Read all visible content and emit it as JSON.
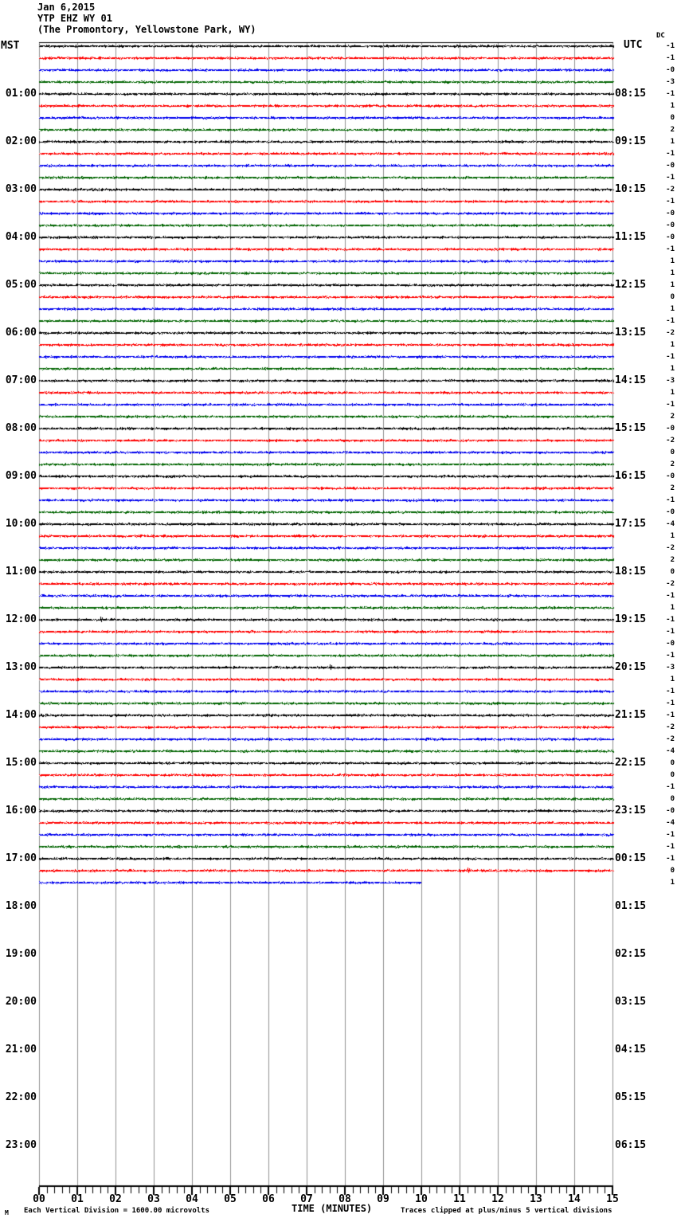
{
  "header": {
    "date": "Jan 6,2015",
    "station": "YTP EHZ WY 01",
    "location": "(The Promontory, Yellowstone Park, WY)"
  },
  "left_axis": {
    "unit": "MST",
    "hour_labels": [
      "01:00",
      "02:00",
      "03:00",
      "04:00",
      "05:00",
      "06:00",
      "07:00",
      "08:00",
      "09:00",
      "10:00",
      "11:00",
      "12:00",
      "13:00",
      "14:00",
      "15:00",
      "16:00",
      "17:00",
      "18:00",
      "19:00",
      "20:00",
      "21:00",
      "22:00",
      "23:00"
    ]
  },
  "right_axis": {
    "unit": "UTC",
    "hour_labels": [
      "08:15",
      "09:15",
      "10:15",
      "11:15",
      "12:15",
      "13:15",
      "14:15",
      "15:15",
      "16:15",
      "17:15",
      "18:15",
      "19:15",
      "20:15",
      "21:15",
      "22:15",
      "23:15",
      "00:15",
      "01:15",
      "02:15",
      "03:15",
      "04:15",
      "05:15",
      "06:15"
    ]
  },
  "dc_column": {
    "label": "DC"
  },
  "x_axis": {
    "title": "TIME (MINUTES)",
    "tick_labels": [
      "00",
      "01",
      "02",
      "03",
      "04",
      "05",
      "06",
      "07",
      "08",
      "09",
      "10",
      "11",
      "12",
      "13",
      "14",
      "15"
    ]
  },
  "footer": {
    "marker": "M",
    "left_note": "Each Vertical Division = 1600.00 microvolts",
    "right_note": "Traces clipped at plus/minus 5 vertical divisions"
  },
  "chart_data": {
    "type": "line",
    "title": "YTP EHZ WY 01 helicorder, Jan 6 2015 (The Promontory, Yellowstone Park, WY)",
    "xlabel": "TIME (MINUTES)",
    "x_range": [
      0,
      15
    ],
    "x_major_tick": 1,
    "x_minor_tick": 0.2,
    "traces_per_hour": 4,
    "minutes_per_trace": 15,
    "num_traces": 71,
    "first_trace_start_mst": "00:00",
    "last_trace_start_mst": "17:30",
    "last_partial_trace": {
      "index": 70,
      "ends_at_minute": 10.0
    },
    "trace_color_cycle": [
      "#000000",
      "#ff0000",
      "#0000ee",
      "#006400"
    ],
    "grid_color": "#909090",
    "baseline": "all traces flat background noise at 0 amplitude",
    "dc_offsets": [
      "-1",
      "-1",
      "-0",
      "-3",
      "-1",
      "1",
      "0",
      "2",
      "1",
      "-1",
      "-0",
      "-1",
      "-2",
      "-1",
      "-0",
      "-0",
      "-0",
      "-1",
      "1",
      "1",
      "1",
      "0",
      "1",
      "-1",
      "-2",
      "1",
      "-1",
      "1",
      "-3",
      "1",
      "-1",
      "2",
      "-0",
      "-2",
      "0",
      "2",
      "-0",
      "2",
      "-1",
      "-0",
      "-4",
      "1",
      "-2",
      "2",
      "0",
      "-2",
      "-1",
      "1",
      "-1",
      "-1",
      "-0",
      "-1",
      "-3",
      "1",
      "-1",
      "-1",
      "-1",
      "-2",
      "-2",
      "-4",
      "0",
      "0",
      "-1",
      "0",
      "-0",
      "-4",
      "-1",
      "-1",
      "-1",
      "0",
      "1"
    ],
    "minor_blips": [
      {
        "trace": 48,
        "minute": 1.6
      },
      {
        "trace": 52,
        "minute": 7.6
      },
      {
        "trace": 69,
        "minute": 11.2
      }
    ],
    "scale_note": "Each Vertical Division = 1600.00 microvolts",
    "clip_note": "Traces clipped at plus/minus 5 vertical divisions"
  }
}
